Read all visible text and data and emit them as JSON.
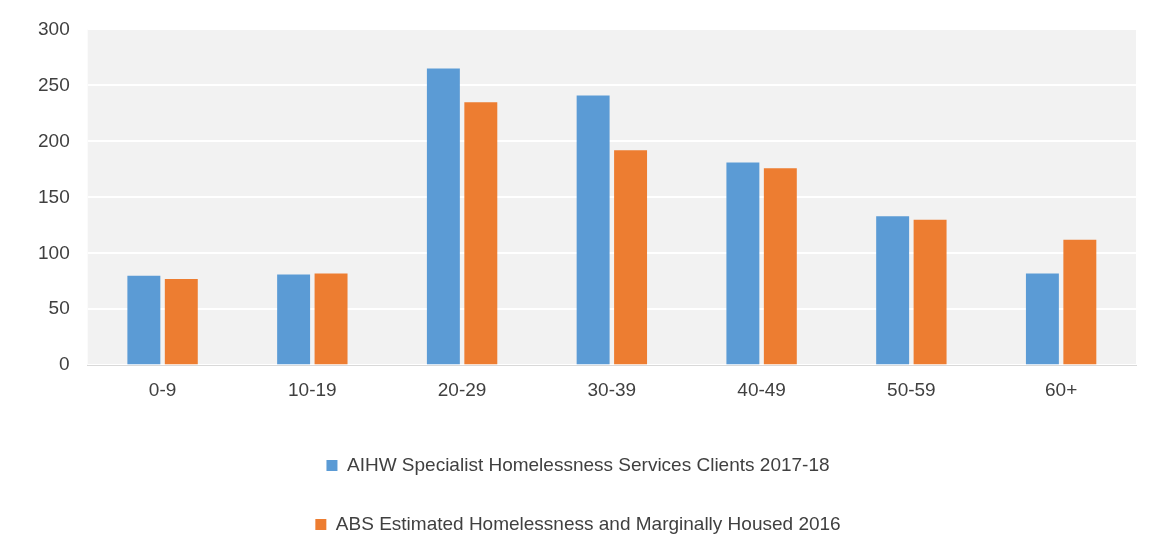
{
  "chart_data": {
    "type": "bar",
    "categories": [
      "0-9",
      "10-19",
      "20-29",
      "30-39",
      "40-49",
      "50-59",
      "60+"
    ],
    "series": [
      {
        "name": "AIHW Specialist Homelessness Services Clients 2017-18",
        "color": "#5b9bd5",
        "values": [
          80,
          81,
          265,
          241,
          181,
          133,
          82
        ]
      },
      {
        "name": "ABS Estimated Homelessness and Marginally Housed 2016",
        "color": "#ed7d31",
        "values": [
          77,
          82,
          235,
          192,
          176,
          130,
          112
        ]
      }
    ],
    "ylim": [
      0,
      300
    ],
    "yticks": [
      0,
      50,
      100,
      150,
      200,
      250,
      300
    ],
    "grid": "y",
    "legend": "bottom"
  }
}
